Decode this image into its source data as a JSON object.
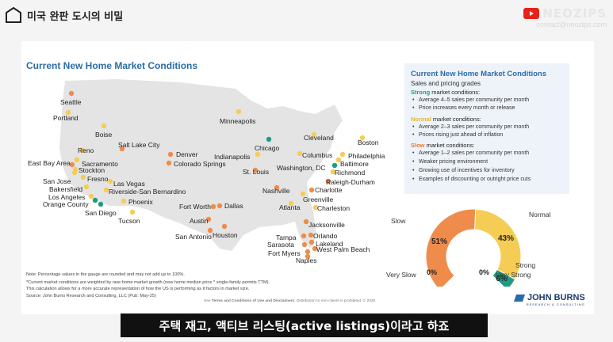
{
  "video": {
    "title": "미국 완판 도시의 비밀"
  },
  "brand": {
    "name": "NEOZIPS",
    "email": "contact@neozips.com"
  },
  "slide": {
    "title": "Current New Home Market Conditions",
    "cities": [
      {
        "name": "Seattle",
        "status": "slow",
        "color": "#ef8c4c"
      },
      {
        "name": "Portland",
        "status": "normal",
        "color": "#f5cd55"
      },
      {
        "name": "Boise",
        "status": "normal",
        "color": "#f5cd55"
      },
      {
        "name": "Minneapolis",
        "status": "normal",
        "color": "#f5cd55"
      },
      {
        "name": "Salt Lake City",
        "status": "slow",
        "color": "#ef8c4c"
      },
      {
        "name": "Reno",
        "status": "normal",
        "color": "#f5cd55"
      },
      {
        "name": "Sacramento",
        "status": "normal",
        "color": "#f5cd55"
      },
      {
        "name": "East Bay Area",
        "status": "slow",
        "color": "#ef8c4c"
      },
      {
        "name": "Stockton",
        "status": "normal",
        "color": "#f5cd55"
      },
      {
        "name": "San Jose",
        "status": "normal",
        "color": "#f5cd55"
      },
      {
        "name": "Fresno",
        "status": "normal",
        "color": "#f5cd55"
      },
      {
        "name": "Bakersfield",
        "status": "normal",
        "color": "#f5cd55"
      },
      {
        "name": "Las Vegas",
        "status": "normal",
        "color": "#f5cd55"
      },
      {
        "name": "Riverside-San Bernardino",
        "status": "normal",
        "color": "#f5cd55"
      },
      {
        "name": "Los Angeles",
        "status": "normal",
        "color": "#f5cd55"
      },
      {
        "name": "Orange County",
        "status": "strong",
        "color": "#1f9b83"
      },
      {
        "name": "San Diego",
        "status": "strong",
        "color": "#1f9b83"
      },
      {
        "name": "Phoenix",
        "status": "normal",
        "color": "#f5cd55"
      },
      {
        "name": "Tucson",
        "status": "normal",
        "color": "#f5cd55"
      },
      {
        "name": "Denver",
        "status": "slow",
        "color": "#ef8c4c"
      },
      {
        "name": "Colorado Springs",
        "status": "slow",
        "color": "#ef8c4c"
      },
      {
        "name": "Chicago",
        "status": "strong",
        "color": "#1f9b83"
      },
      {
        "name": "Indianapolis",
        "status": "normal",
        "color": "#f5cd55"
      },
      {
        "name": "St. Louis",
        "status": "slow",
        "color": "#ef8c4c"
      },
      {
        "name": "Cleveland",
        "status": "normal",
        "color": "#f5cd55"
      },
      {
        "name": "Columbus",
        "status": "normal",
        "color": "#f5cd55"
      },
      {
        "name": "Washington, DC",
        "status": "strong",
        "color": "#1f9b83"
      },
      {
        "name": "Boston",
        "status": "normal",
        "color": "#f5cd55"
      },
      {
        "name": "Philadelphia",
        "status": "normal",
        "color": "#f5cd55"
      },
      {
        "name": "Baltimore",
        "status": "normal",
        "color": "#f5cd55"
      },
      {
        "name": "Richmond",
        "status": "normal",
        "color": "#f5cd55"
      },
      {
        "name": "Raleigh-Durham",
        "status": "slow",
        "color": "#ef8c4c"
      },
      {
        "name": "Charlotte",
        "status": "slow",
        "color": "#ef8c4c"
      },
      {
        "name": "Nashville",
        "status": "slow",
        "color": "#ef8c4c"
      },
      {
        "name": "Greenville",
        "status": "normal",
        "color": "#f5cd55"
      },
      {
        "name": "Atlanta",
        "status": "normal",
        "color": "#f5cd55"
      },
      {
        "name": "Charleston",
        "status": "normal",
        "color": "#f5cd55"
      },
      {
        "name": "Fort Worth",
        "status": "slow",
        "color": "#ef8c4c"
      },
      {
        "name": "Dallas",
        "status": "slow",
        "color": "#ef8c4c"
      },
      {
        "name": "Austin",
        "status": "slow",
        "color": "#ef8c4c"
      },
      {
        "name": "San Antonio",
        "status": "slow",
        "color": "#ef8c4c"
      },
      {
        "name": "Houston",
        "status": "slow",
        "color": "#ef8c4c"
      },
      {
        "name": "Jacksonville",
        "status": "slow",
        "color": "#ef8c4c"
      },
      {
        "name": "Tampa",
        "status": "slow",
        "color": "#ef8c4c"
      },
      {
        "name": "Orlando",
        "status": "slow",
        "color": "#ef8c4c"
      },
      {
        "name": "Sarasota",
        "status": "slow",
        "color": "#ef8c4c"
      },
      {
        "name": "Lakeland",
        "status": "slow",
        "color": "#ef8c4c"
      },
      {
        "name": "Fort Myers",
        "status": "slow",
        "color": "#ef8c4c"
      },
      {
        "name": "West Palm Beach",
        "status": "slow",
        "color": "#ef8c4c"
      },
      {
        "name": "Naples",
        "status": "slow",
        "color": "#ef8c4c"
      }
    ],
    "legend": {
      "title": "Current New Home Market Conditions",
      "subtitle": "Sales and pricing grades",
      "strong_word": "Strong",
      "strong_rest": " market conditions:",
      "strong_items": [
        "Average 4–5 sales per community per month",
        "Price increases every month or release"
      ],
      "normal_word": "Normal",
      "normal_rest": " market conditions:",
      "normal_items": [
        "Average 2–3 sales per community per month",
        "Prices rising just ahead of inflation"
      ],
      "slow_word": "Slow",
      "slow_rest": " market conditions:",
      "slow_items": [
        "Average 1–2 sales per community per month",
        "Weaker pricing environment",
        "Growing use of incentives for inventory",
        "Examples of discounting or outright price cuts"
      ],
      "colors": {
        "strong": "#1f9b83",
        "normal": "#e0b534",
        "slow": "#e8773a"
      }
    },
    "gauge": {
      "segments": [
        {
          "name": "Very Slow",
          "value": 0,
          "label": "0%",
          "color": "#c0392b"
        },
        {
          "name": "Slow",
          "value": 51,
          "label": "51%",
          "color": "#ef8c4c"
        },
        {
          "name": "Normal",
          "value": 43,
          "label": "43%",
          "color": "#f5cd55"
        },
        {
          "name": "Strong",
          "value": 6,
          "label": "6%",
          "color": "#1f9b83"
        },
        {
          "name": "Very Strong",
          "value": 0,
          "label": "0%",
          "color": "#0d6b5a"
        }
      ]
    },
    "notes": [
      "Note: Percentage values in the gauge are rounded and may not add up to 100%.",
      "*Current market conditions are weighted by new home market growth (new home median price * single-family permits TTM).",
      "This calculation allows for a more accurate representation of how the US is performing as it factors in market size.",
      "Source: John Burns Research and Consulting, LLC (Pub: May-25)"
    ],
    "footer": {
      "pre": "See ",
      "link": "Terms and Conditions of Use and Disclaimers",
      "post": ". Distribution to non-clients is prohibited. © 2025"
    },
    "logo": {
      "name": "JOHN BURNS",
      "sub": "RESEARCH & CONSULTING"
    }
  },
  "subtitle": "주택 재고, 액티브 리스팅(active listings)이라고 하죠"
}
